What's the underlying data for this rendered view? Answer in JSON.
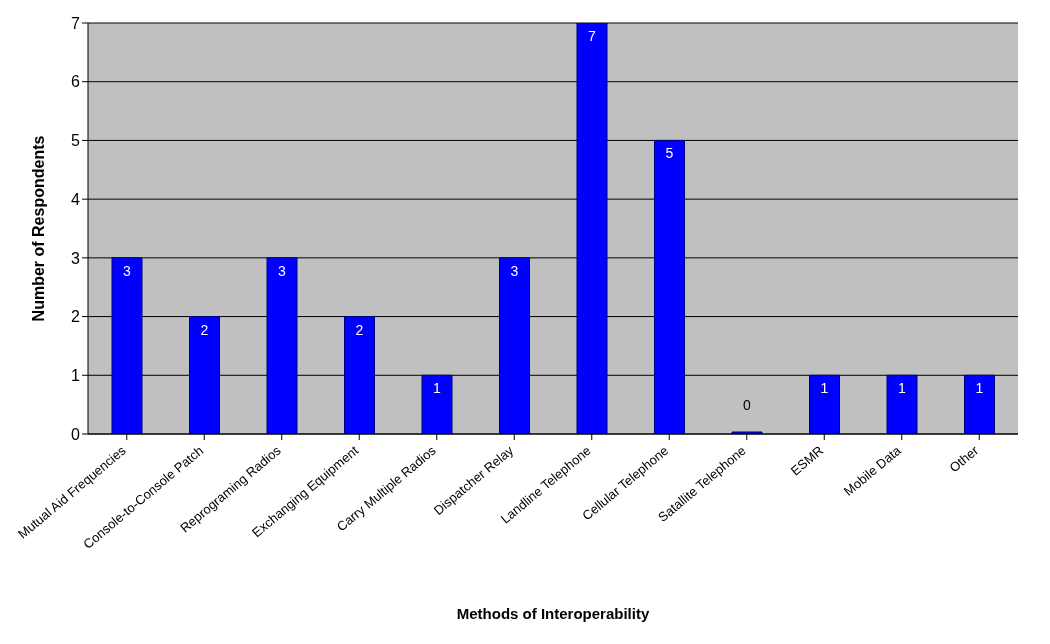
{
  "chart_data": {
    "type": "bar",
    "xlabel": "Methods of Interoperability",
    "ylabel": "Number of Respondents",
    "categories": [
      "Mutual Aid Frequencies",
      "Console-to-Console Patch",
      "Reprograming Radios",
      "Exchanging Equipment",
      "Carry Multiple Radios",
      "Dispatcher Relay",
      "Landline Telephone",
      "Cellular Telephone",
      "Satallite Telephone",
      "ESMR",
      "Mobile Data",
      "Other"
    ],
    "values": [
      3,
      2,
      3,
      2,
      1,
      3,
      7,
      5,
      0,
      1,
      1,
      1
    ],
    "color": "#0000ff",
    "ylim": [
      0,
      7
    ],
    "yticks": [
      0,
      1,
      2,
      3,
      4,
      5,
      6,
      7
    ],
    "grid": "y",
    "data_labels": true
  }
}
